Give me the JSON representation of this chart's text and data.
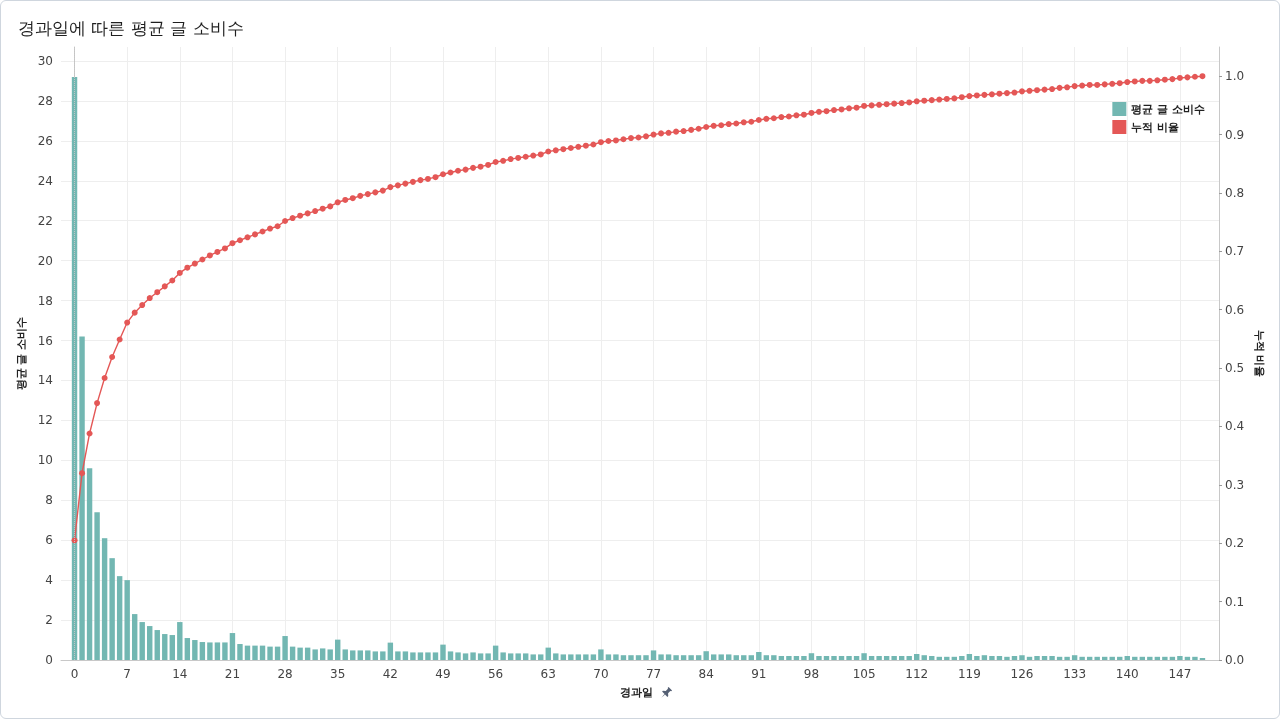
{
  "chart_data": {
    "type": "bar",
    "title": "경과일에 따른 평균 글 소비수",
    "xlabel": "경과일",
    "ylabel": "평균 글 소비수",
    "y2label": "누적 비율",
    "x": [
      0,
      1,
      2,
      3,
      4,
      5,
      6,
      7,
      8,
      9,
      10,
      11,
      12,
      13,
      14,
      15,
      16,
      17,
      18,
      19,
      20,
      21,
      22,
      23,
      24,
      25,
      26,
      27,
      28,
      29,
      30,
      31,
      32,
      33,
      34,
      35,
      36,
      37,
      38,
      39,
      40,
      41,
      42,
      43,
      44,
      45,
      46,
      47,
      48,
      49,
      50,
      51,
      52,
      53,
      54,
      55,
      56,
      57,
      58,
      59,
      60,
      61,
      62,
      63,
      64,
      65,
      66,
      67,
      68,
      69,
      70,
      71,
      72,
      73,
      74,
      75,
      76,
      77,
      78,
      79,
      80,
      81,
      82,
      83,
      84,
      85,
      86,
      87,
      88,
      89,
      90,
      91,
      92,
      93,
      94,
      95,
      96,
      97,
      98,
      99,
      100,
      101,
      102,
      103,
      104,
      105,
      106,
      107,
      108,
      109,
      110,
      111,
      112,
      113,
      114,
      115,
      116,
      117,
      118,
      119,
      120,
      121,
      122,
      123,
      124,
      125,
      126,
      127,
      128,
      129,
      130,
      131,
      132,
      133,
      134,
      135,
      136,
      137,
      138,
      139,
      140,
      141,
      142,
      143,
      144,
      145,
      146,
      147,
      148,
      149,
      150
    ],
    "xlim": [
      -1.8,
      152.2
    ],
    "xticks": [
      0,
      7,
      14,
      21,
      28,
      35,
      42,
      49,
      56,
      63,
      70,
      77,
      84,
      91,
      98,
      105,
      112,
      119,
      126,
      133,
      140,
      147
    ],
    "ylim": [
      0,
      30.7
    ],
    "yticks": [
      0,
      2,
      4,
      6,
      8,
      10,
      12,
      14,
      16,
      18,
      20,
      22,
      24,
      26,
      28,
      30
    ],
    "y2lim": [
      0,
      1.05
    ],
    "y2ticks": [
      {
        "value": 0,
        "label": "0.0"
      },
      0.1,
      0.2,
      0.3,
      0.4,
      0.5,
      0.6,
      0.7,
      0.8,
      0.9,
      {
        "value": 1,
        "label": "1.0"
      }
    ],
    "series": [
      {
        "name": "평균 글 소비수",
        "color": "#72b7b2",
        "values": [
          29.2,
          16.2,
          9.6,
          7.4,
          6.1,
          5.1,
          4.2,
          4.0,
          2.3,
          1.9,
          1.7,
          1.5,
          1.3,
          1.25,
          1.9,
          1.1,
          1.0,
          0.9,
          0.88,
          0.88,
          0.88,
          1.35,
          0.8,
          0.72,
          0.72,
          0.72,
          0.67,
          0.67,
          1.2,
          0.67,
          0.62,
          0.62,
          0.53,
          0.58,
          0.53,
          1.02,
          0.53,
          0.48,
          0.48,
          0.48,
          0.43,
          0.43,
          0.87,
          0.43,
          0.43,
          0.38,
          0.38,
          0.38,
          0.38,
          0.77,
          0.43,
          0.38,
          0.33,
          0.38,
          0.33,
          0.33,
          0.72,
          0.38,
          0.33,
          0.33,
          0.33,
          0.28,
          0.28,
          0.62,
          0.33,
          0.28,
          0.28,
          0.28,
          0.28,
          0.28,
          0.53,
          0.28,
          0.28,
          0.24,
          0.24,
          0.24,
          0.24,
          0.48,
          0.28,
          0.28,
          0.24,
          0.24,
          0.24,
          0.24,
          0.44,
          0.28,
          0.28,
          0.28,
          0.24,
          0.24,
          0.24,
          0.4,
          0.24,
          0.24,
          0.2,
          0.2,
          0.2,
          0.2,
          0.34,
          0.2,
          0.2,
          0.2,
          0.2,
          0.2,
          0.2,
          0.34,
          0.2,
          0.2,
          0.2,
          0.2,
          0.2,
          0.2,
          0.3,
          0.24,
          0.2,
          0.16,
          0.16,
          0.16,
          0.2,
          0.3,
          0.2,
          0.24,
          0.2,
          0.2,
          0.16,
          0.2,
          0.24,
          0.16,
          0.2,
          0.2,
          0.2,
          0.16,
          0.16,
          0.24,
          0.16,
          0.16,
          0.16,
          0.16,
          0.16,
          0.16,
          0.2,
          0.16,
          0.16,
          0.16,
          0.16,
          0.16,
          0.16,
          0.2,
          0.16,
          0.16,
          0.1
        ]
      },
      {
        "name": "누적 비율",
        "type": "line",
        "axis": "y2",
        "color": "#e45756",
        "values": [
          0.205,
          0.32,
          0.388,
          0.44,
          0.483,
          0.519,
          0.549,
          0.578,
          0.595,
          0.608,
          0.62,
          0.63,
          0.64,
          0.65,
          0.663,
          0.672,
          0.679,
          0.686,
          0.693,
          0.699,
          0.705,
          0.714,
          0.719,
          0.724,
          0.729,
          0.734,
          0.739,
          0.743,
          0.752,
          0.757,
          0.761,
          0.765,
          0.769,
          0.773,
          0.777,
          0.784,
          0.788,
          0.791,
          0.795,
          0.798,
          0.801,
          0.804,
          0.81,
          0.813,
          0.816,
          0.819,
          0.822,
          0.824,
          0.827,
          0.832,
          0.835,
          0.838,
          0.84,
          0.843,
          0.845,
          0.848,
          0.853,
          0.855,
          0.858,
          0.86,
          0.862,
          0.864,
          0.866,
          0.871,
          0.873,
          0.875,
          0.877,
          0.879,
          0.881,
          0.883,
          0.887,
          0.889,
          0.89,
          0.892,
          0.894,
          0.895,
          0.897,
          0.9,
          0.902,
          0.903,
          0.905,
          0.906,
          0.908,
          0.91,
          0.913,
          0.915,
          0.916,
          0.918,
          0.919,
          0.921,
          0.922,
          0.925,
          0.927,
          0.928,
          0.93,
          0.931,
          0.933,
          0.934,
          0.937,
          0.939,
          0.94,
          0.942,
          0.943,
          0.945,
          0.946,
          0.949,
          0.95,
          0.951,
          0.952,
          0.953,
          0.954,
          0.955,
          0.957,
          0.958,
          0.959,
          0.96,
          0.961,
          0.962,
          0.964,
          0.966,
          0.967,
          0.968,
          0.969,
          0.97,
          0.971,
          0.972,
          0.974,
          0.975,
          0.976,
          0.977,
          0.978,
          0.98,
          0.981,
          0.983,
          0.984,
          0.985,
          0.985,
          0.986,
          0.987,
          0.988,
          0.99,
          0.991,
          0.992,
          0.992,
          0.993,
          0.994,
          0.995,
          0.997,
          0.998,
          0.999,
          1.0
        ]
      }
    ],
    "ref_lines": [
      {
        "axis": "x",
        "value": 0,
        "line_style": "dotted",
        "color": "#c4c4c4"
      }
    ],
    "grid": true,
    "legend": "top right",
    "marker": "circle",
    "line_style": "solid"
  }
}
